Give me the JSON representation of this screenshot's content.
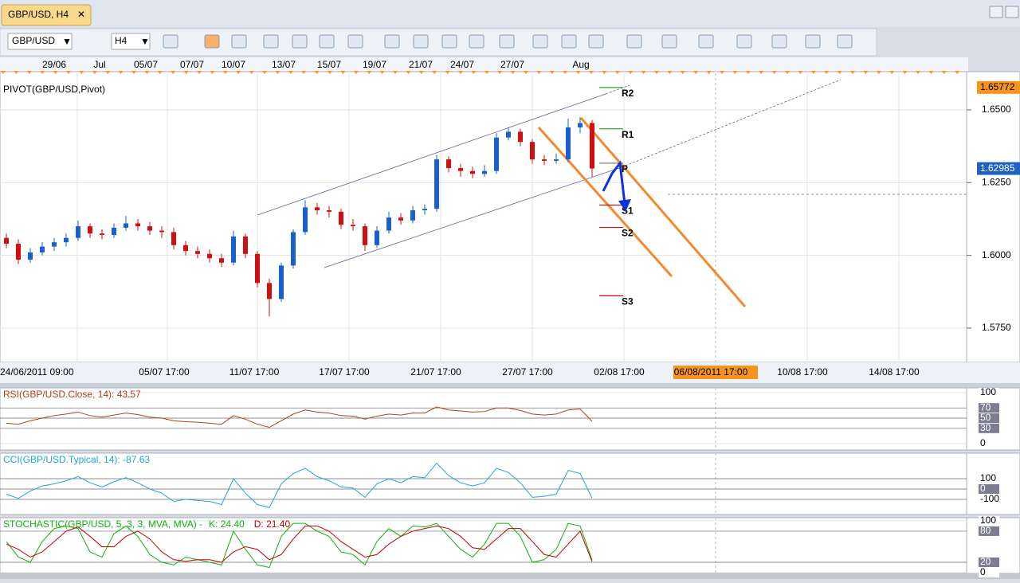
{
  "tab": {
    "title": "GBP/USD, H4"
  },
  "toolbar": {
    "symbol": "GBP/USD",
    "timeframe": "H4"
  },
  "chart_data": [
    {
      "type": "candlestick",
      "title": "PIVOT(GBP/USD,Pivot)",
      "top_dates": [
        "29/06",
        "Jul",
        "05/07",
        "07/07",
        "10/07",
        "13/07",
        "15/07",
        "19/07",
        "21/07",
        "24/07",
        "27/07",
        "Aug"
      ],
      "x_labels": [
        "24/06/2011 09:00",
        "05/07 17:00",
        "11/07 17:00",
        "17/07 17:00",
        "21/07 17:00",
        "27/07 17:00",
        "02/08 17:00",
        "06/08/2011 17:00",
        "10/08 17:00",
        "14/08 17:00"
      ],
      "open": [
        1.606,
        1.604,
        1.5985,
        1.601,
        1.603,
        1.6045,
        1.606,
        1.61,
        1.6075,
        1.607,
        1.6095,
        1.611,
        1.61,
        1.6085,
        1.608,
        1.6035,
        1.6015,
        1.6005,
        1.599,
        1.5975,
        1.6065,
        1.6005,
        1.5905,
        1.585,
        1.5965,
        1.608,
        1.6165,
        1.6155,
        1.615,
        1.6105,
        1.61,
        1.6035,
        1.6085,
        1.613,
        1.612,
        1.6155,
        1.616,
        1.633,
        1.63,
        1.629,
        1.628,
        1.629,
        1.6405,
        1.6425,
        1.639,
        1.633,
        1.6325,
        1.633,
        1.644,
        1.6455
      ],
      "high": [
        1.6075,
        1.6055,
        1.6025,
        1.6045,
        1.606,
        1.6075,
        1.612,
        1.611,
        1.609,
        1.611,
        1.6135,
        1.6125,
        1.6115,
        1.61,
        1.6095,
        1.605,
        1.603,
        1.602,
        1.6005,
        1.6085,
        1.6075,
        1.6015,
        1.592,
        1.5975,
        1.609,
        1.619,
        1.618,
        1.617,
        1.616,
        1.6125,
        1.611,
        1.61,
        1.615,
        1.6145,
        1.617,
        1.6175,
        1.6345,
        1.634,
        1.6315,
        1.6305,
        1.631,
        1.642,
        1.644,
        1.6435,
        1.64,
        1.6345,
        1.635,
        1.647,
        1.6475,
        1.6465
      ],
      "low": [
        1.6025,
        1.597,
        1.5975,
        1.6,
        1.6015,
        1.603,
        1.605,
        1.606,
        1.6055,
        1.606,
        1.6085,
        1.6085,
        1.607,
        1.606,
        1.602,
        1.6,
        1.599,
        1.5975,
        1.596,
        1.5965,
        1.599,
        1.589,
        1.579,
        1.584,
        1.5955,
        1.607,
        1.614,
        1.613,
        1.609,
        1.6085,
        1.6015,
        1.6025,
        1.6075,
        1.6105,
        1.611,
        1.614,
        1.615,
        1.6285,
        1.627,
        1.6265,
        1.627,
        1.628,
        1.6395,
        1.6375,
        1.6315,
        1.631,
        1.6315,
        1.632,
        1.642,
        1.627
      ],
      "close": [
        1.604,
        1.5985,
        1.601,
        1.603,
        1.6045,
        1.606,
        1.61,
        1.6075,
        1.607,
        1.6095,
        1.611,
        1.61,
        1.6085,
        1.608,
        1.6035,
        1.6015,
        1.6005,
        1.599,
        1.5975,
        1.6065,
        1.6005,
        1.5905,
        1.585,
        1.5965,
        1.608,
        1.6165,
        1.6155,
        1.615,
        1.6105,
        1.61,
        1.6035,
        1.6085,
        1.613,
        1.612,
        1.6155,
        1.616,
        1.633,
        1.63,
        1.629,
        1.628,
        1.629,
        1.6405,
        1.6425,
        1.639,
        1.633,
        1.6325,
        1.633,
        1.644,
        1.6455,
        1.62985
      ],
      "up_color": "#1a5fd0",
      "down_color": "#d01010",
      "ylim": [
        1.5632,
        1.6626
      ],
      "yticks": [
        {
          "value": 1.575,
          "label": "1.5750"
        },
        {
          "value": 1.6,
          "label": "1.6000"
        },
        {
          "value": 1.625,
          "label": "1.6250"
        },
        {
          "value": 1.65,
          "label": "1.6500"
        }
      ],
      "price_tags": [
        {
          "value": 1.65772,
          "color": "#f7941d"
        },
        {
          "value": 1.62985,
          "color": "#2060c0"
        }
      ],
      "pivots": [
        {
          "name": "R2",
          "value": 1.6577,
          "color": "#20b020"
        },
        {
          "name": "R1",
          "value": 1.6435,
          "color": "#20b020"
        },
        {
          "name": "P",
          "value": 1.6317,
          "color": "#808080"
        },
        {
          "name": "S1",
          "value": 1.6173,
          "color": "#c01010"
        },
        {
          "name": "S2",
          "value": 1.6096,
          "color": "#c01010"
        },
        {
          "name": "S3",
          "value": 1.5861,
          "color": "#c01010"
        }
      ],
      "grid": true
    },
    {
      "type": "line",
      "title": "RSI(GBP/USD.Close, 14): 43.57",
      "title_color": "#b0401a",
      "series": [
        {
          "color": "#b0401a",
          "values": [
            40,
            38,
            45,
            50,
            55,
            58,
            62,
            55,
            52,
            56,
            60,
            57,
            52,
            50,
            45,
            43,
            42,
            40,
            38,
            55,
            48,
            38,
            32,
            45,
            58,
            66,
            62,
            60,
            55,
            54,
            48,
            54,
            58,
            56,
            60,
            60,
            72,
            66,
            64,
            62,
            63,
            70,
            70,
            65,
            58,
            56,
            58,
            66,
            68,
            43.57
          ]
        }
      ],
      "ylim": [
        -12.5,
        109.4
      ],
      "yticks": [
        0,
        30,
        50,
        70,
        100
      ]
    },
    {
      "type": "line",
      "title": "CCI(GBP/USD.Typical, 14): -87.63",
      "title_color": "#1ea7d8",
      "series": [
        {
          "color": "#1ea7d8",
          "values": [
            -50,
            -90,
            -20,
            30,
            50,
            80,
            120,
            60,
            20,
            70,
            110,
            60,
            0,
            -40,
            -120,
            -100,
            -110,
            -120,
            -150,
            100,
            -40,
            -150,
            -180,
            50,
            150,
            200,
            120,
            80,
            20,
            10,
            -80,
            50,
            100,
            60,
            120,
            110,
            250,
            130,
            60,
            30,
            60,
            200,
            160,
            60,
            -80,
            -70,
            -50,
            180,
            150,
            -87.63
          ]
        }
      ],
      "ylim": [
        -246,
        346
      ],
      "yticks": [
        -100,
        0,
        100
      ]
    },
    {
      "type": "line",
      "title": "STOCHASTIC(GBP/USD, 5, 3, 3, MVA, MVA) -",
      "title_color": "#10b010",
      "series": [
        {
          "name": "K: 24.40",
          "color": "#10b010",
          "values": [
            60,
            30,
            20,
            60,
            85,
            90,
            85,
            40,
            30,
            75,
            90,
            70,
            35,
            20,
            15,
            30,
            25,
            20,
            15,
            80,
            45,
            15,
            10,
            70,
            95,
            95,
            80,
            70,
            40,
            35,
            15,
            60,
            85,
            70,
            90,
            88,
            95,
            70,
            45,
            30,
            55,
            95,
            95,
            70,
            20,
            25,
            45,
            95,
            90,
            24.4
          ]
        },
        {
          "name": "D: 21.40",
          "color": "#c00000",
          "values": [
            55,
            45,
            30,
            40,
            60,
            80,
            88,
            70,
            50,
            50,
            70,
            80,
            65,
            40,
            25,
            22,
            25,
            25,
            20,
            40,
            50,
            45,
            25,
            35,
            65,
            90,
            90,
            80,
            60,
            45,
            30,
            35,
            55,
            70,
            80,
            85,
            90,
            85,
            70,
            48,
            45,
            65,
            85,
            85,
            60,
            35,
            30,
            55,
            80,
            21.4
          ]
        }
      ],
      "ylim": [
        -1.5,
        106
      ],
      "yticks": [
        0,
        20,
        80,
        100
      ]
    }
  ]
}
